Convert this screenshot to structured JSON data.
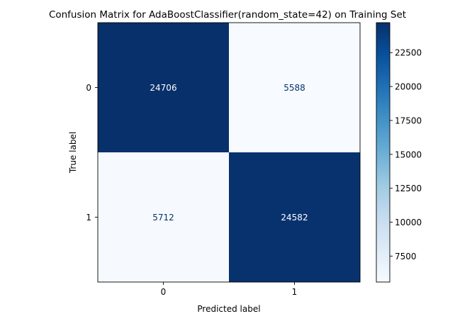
{
  "chart_data": {
    "type": "heatmap",
    "title": "Confusion Matrix for AdaBoostClassifier(random_state=42) on Training Set",
    "xlabel": "Predicted label",
    "ylabel": "True label",
    "x_categories": [
      "0",
      "1"
    ],
    "y_categories": [
      "0",
      "1"
    ],
    "values": [
      [
        24706,
        5588
      ],
      [
        5712,
        24582
      ]
    ],
    "colormap": "Blues",
    "color_low": "#f7fbff",
    "color_high": "#08306b",
    "colorbar": {
      "min": 5588,
      "max": 24706,
      "ticks": [
        7500,
        10000,
        12500,
        15000,
        17500,
        20000,
        22500
      ]
    },
    "grid": false
  }
}
